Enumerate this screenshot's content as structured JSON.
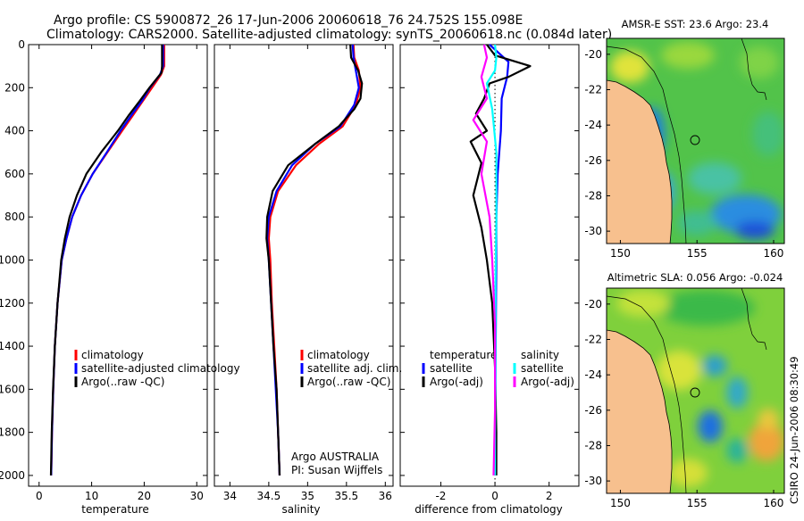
{
  "header": {
    "line1": "Argo profile: CS 5900872_26 17-Jun-2006 20060618_76 24.752S 155.098E",
    "line2": "Climatology: CARS2000. Satellite-adjusted climatology: synTS_20060618.nc (0.084d later)"
  },
  "colors": {
    "climatology": "#ff0000",
    "satellite": "#0000ff",
    "argo": "#000000",
    "satellite_salinity": "#00ffff",
    "argo_adj_salinity": "#ff00ff",
    "land": "#f7c08e"
  },
  "chart_data": [
    {
      "id": "temperature",
      "type": "line",
      "xlabel": "temperature",
      "ylabel": "",
      "xlim": [
        -2,
        32
      ],
      "ylim": [
        2050,
        0
      ],
      "xticks": [
        0,
        10,
        20,
        30
      ],
      "yticks": [
        0,
        200,
        400,
        600,
        800,
        1000,
        1200,
        1400,
        1600,
        1800,
        2000
      ],
      "legend": {
        "placement": "lower-right",
        "entries": [
          "climatology",
          "satellite-adjusted climatology",
          "Argo(..raw -QC)"
        ]
      },
      "series": [
        {
          "name": "climatology",
          "color": "#ff0000",
          "x": [
            23.8,
            23.8,
            23.2,
            21.5,
            19.8,
            17.8,
            15.8,
            13.0,
            10.2,
            8.0,
            6.3,
            5.2,
            4.3,
            3.5,
            3.0,
            2.7,
            2.45,
            2.3
          ],
          "y": [
            0,
            100,
            140,
            200,
            260,
            330,
            400,
            500,
            600,
            700,
            800,
            900,
            1000,
            1200,
            1400,
            1600,
            1800,
            2000
          ]
        },
        {
          "name": "satellite-adjusted climatology",
          "color": "#0000ff",
          "x": [
            23.6,
            23.6,
            23.0,
            21.1,
            19.6,
            17.5,
            15.5,
            12.9,
            10.2,
            8.0,
            6.3,
            5.2,
            4.3,
            3.5,
            3.0,
            2.7,
            2.45,
            2.3
          ],
          "y": [
            0,
            100,
            140,
            200,
            260,
            330,
            400,
            500,
            600,
            700,
            800,
            900,
            1000,
            1200,
            1400,
            1600,
            1800,
            2000
          ]
        },
        {
          "name": "Argo(..raw -QC)",
          "color": "#000000",
          "x": [
            23.4,
            23.4,
            23.3,
            21.0,
            19.2,
            17.0,
            15.0,
            11.8,
            9.0,
            7.2,
            5.8,
            4.9,
            4.2,
            3.5,
            3.0,
            2.65,
            2.4,
            2.25
          ],
          "y": [
            0,
            100,
            130,
            200,
            260,
            330,
            400,
            500,
            600,
            700,
            800,
            900,
            1000,
            1200,
            1400,
            1600,
            1800,
            2000
          ]
        }
      ]
    },
    {
      "id": "salinity",
      "type": "line",
      "xlabel": "salinity",
      "ylabel": "",
      "xlim": [
        33.8,
        36.1
      ],
      "ylim": [
        2050,
        0
      ],
      "xticks": [
        34,
        34.5,
        35,
        35.5,
        36
      ],
      "xticklabels": [
        "34",
        "34.5",
        "35",
        "35.5",
        "36"
      ],
      "legend": {
        "placement": "lower-right",
        "entries": [
          "climatology",
          "satellite adj. clim.",
          "Argo(..raw -QC)"
        ]
      },
      "annotation": [
        "Argo AUSTRALIA",
        "PI: Susan Wijffels"
      ],
      "series": [
        {
          "name": "climatology",
          "color": "#ff0000",
          "x": [
            35.59,
            35.6,
            35.66,
            35.68,
            35.62,
            35.45,
            35.15,
            34.85,
            34.62,
            34.52,
            34.5,
            34.52,
            34.54,
            34.57,
            34.6,
            34.62,
            34.64
          ],
          "y": [
            0,
            60,
            120,
            200,
            280,
            380,
            460,
            560,
            680,
            800,
            900,
            1000,
            1200,
            1400,
            1600,
            1800,
            2000
          ]
        },
        {
          "name": "satellite adj. clim.",
          "color": "#0000ff",
          "x": [
            35.58,
            35.59,
            35.62,
            35.66,
            35.6,
            35.42,
            35.1,
            34.8,
            34.6,
            34.5,
            34.48,
            34.5,
            34.53,
            34.56,
            34.59,
            34.62,
            34.64
          ],
          "y": [
            0,
            60,
            120,
            200,
            280,
            380,
            460,
            560,
            680,
            800,
            900,
            1000,
            1200,
            1400,
            1600,
            1800,
            2000
          ]
        },
        {
          "name": "Argo(..raw -QC)",
          "color": "#000000",
          "x": [
            35.55,
            35.56,
            35.65,
            35.7,
            35.68,
            35.6,
            35.4,
            35.1,
            34.75,
            34.55,
            34.48,
            34.47,
            34.5,
            34.53,
            34.56,
            34.6,
            34.62,
            34.64
          ],
          "y": [
            0,
            60,
            120,
            180,
            250,
            300,
            380,
            460,
            560,
            680,
            800,
            900,
            1000,
            1200,
            1400,
            1600,
            1800,
            2000
          ]
        }
      ]
    },
    {
      "id": "difference",
      "type": "line",
      "xlabel": "difference from climatology",
      "ylabel": "",
      "xlim": [
        -3.5,
        3.1
      ],
      "ylim": [
        2050,
        0
      ],
      "xticks": [
        -2,
        0,
        2
      ],
      "legend": {
        "placement": "lower-center",
        "temperature_title": "temperature",
        "salinity_title": "salinity",
        "entries": [
          "satellite",
          "Argo(-adj)",
          "satellite",
          "Argo(-adj)"
        ]
      },
      "series": [
        {
          "name": "temperature satellite",
          "color": "#0000ff",
          "x": [
            -0.2,
            0.5,
            0.45,
            0.25,
            0.22,
            0.1,
            0.05,
            0.05,
            0.02,
            0.0
          ],
          "y": [
            0,
            80,
            150,
            250,
            400,
            600,
            800,
            1000,
            1500,
            2000
          ]
        },
        {
          "name": "temperature Argo(-adj)",
          "color": "#000000",
          "x": [
            -0.3,
            0.0,
            1.3,
            0.5,
            -0.2,
            -0.4,
            -0.7,
            -0.3,
            -0.9,
            -0.5,
            -0.8,
            -0.5,
            -0.3,
            -0.1,
            0.0,
            0.05,
            0.05
          ],
          "y": [
            0,
            50,
            100,
            150,
            180,
            250,
            320,
            400,
            450,
            550,
            700,
            850,
            1000,
            1200,
            1500,
            1800,
            2000
          ]
        },
        {
          "name": "salinity satellite",
          "color": "#00ffff",
          "x": [
            0.0,
            0.05,
            0.0,
            -0.3,
            -0.1,
            0.05,
            0.05,
            0.02,
            0.02,
            0.0,
            0.0
          ],
          "y": [
            0,
            60,
            120,
            180,
            300,
            500,
            800,
            1100,
            1500,
            1800,
            2000
          ]
        },
        {
          "name": "salinity Argo(-adj)",
          "color": "#ff00ff",
          "x": [
            -0.4,
            -0.3,
            -0.5,
            -0.3,
            -0.8,
            -0.3,
            -0.5,
            -0.2,
            -0.1,
            0.0,
            0.0,
            -0.05
          ],
          "y": [
            0,
            60,
            150,
            250,
            350,
            450,
            600,
            800,
            1000,
            1300,
            1700,
            2000
          ]
        }
      ]
    }
  ],
  "maps": [
    {
      "title": "AMSR-E SST: 23.6  Argo: 23.4",
      "xticks": [
        "150",
        "155",
        "160"
      ],
      "yticks": [
        "-20",
        "-22",
        "-24",
        "-26",
        "-28",
        "-30"
      ],
      "profile_lon": 155.098,
      "profile_lat": -24.752
    },
    {
      "title": "Altimetric SLA: 0.056  Argo: -0.024",
      "xticks": [
        "150",
        "155",
        "160"
      ],
      "yticks": [
        "-20",
        "-22",
        "-24",
        "-26",
        "-28",
        "-30"
      ],
      "profile_lon": 155.098,
      "profile_lat": -24.752
    }
  ],
  "stamp": "CSIRO 24-Jun-2006 08:30:49"
}
